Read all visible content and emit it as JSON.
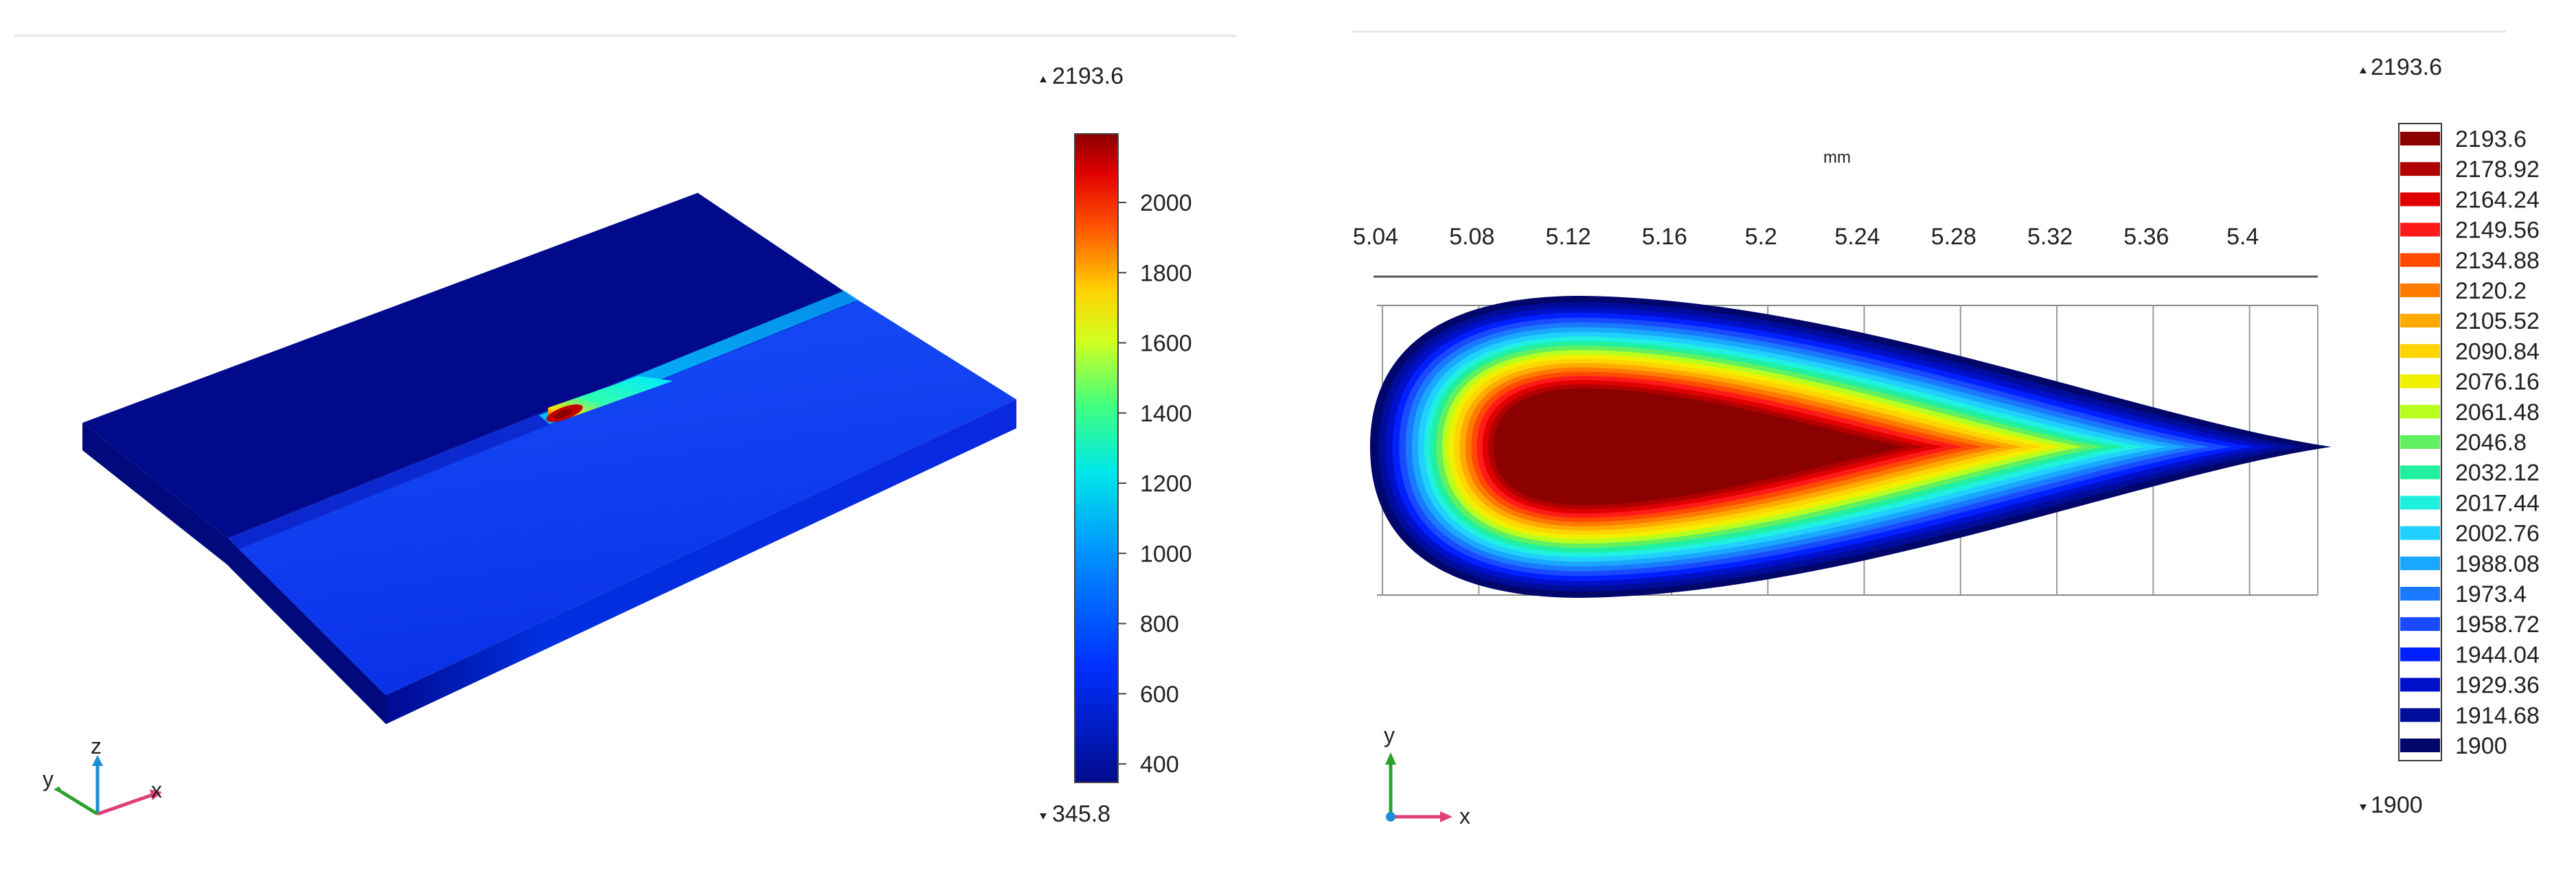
{
  "left_plot": {
    "max_label": "2193.6",
    "min_label": "345.8",
    "colorbar_ticks": [
      "2000",
      "1800",
      "1600",
      "1400",
      "1200",
      "1000",
      "800",
      "600",
      "400"
    ],
    "axis_triad": {
      "z": "z",
      "y": "y",
      "x": "x"
    }
  },
  "right_plot": {
    "max_label": "2193.6",
    "min_label": "1900",
    "unit_label": "mm",
    "x_ticks": [
      "5.04",
      "5.08",
      "5.12",
      "5.16",
      "5.2",
      "5.24",
      "5.28",
      "5.32",
      "5.36",
      "5.4"
    ],
    "legend_levels": [
      "2193.6",
      "2178.92",
      "2164.24",
      "2149.56",
      "2134.88",
      "2120.2",
      "2105.52",
      "2090.84",
      "2076.16",
      "2061.48",
      "2046.8",
      "2032.12",
      "2017.44",
      "2002.76",
      "1988.08",
      "1973.4",
      "1958.72",
      "1944.04",
      "1929.36",
      "1914.68",
      "1900"
    ],
    "legend_colors": [
      "#8b0000",
      "#b00000",
      "#e00000",
      "#ff1a1a",
      "#ff4a00",
      "#ff7a00",
      "#ffaa00",
      "#ffd400",
      "#f0f000",
      "#b8ff20",
      "#60f060",
      "#20f0a0",
      "#20f0e0",
      "#20d0ff",
      "#1aa8ff",
      "#1a7aff",
      "#1a4aff",
      "#0020ff",
      "#0010c8",
      "#000c9a",
      "#00066a"
    ],
    "axis_triad": {
      "y": "y",
      "x": "x"
    }
  }
}
